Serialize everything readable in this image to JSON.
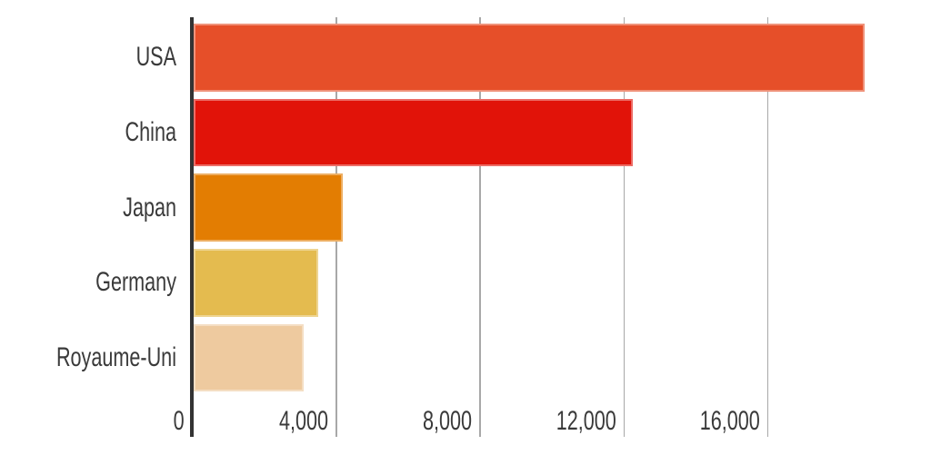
{
  "chart_data": {
    "type": "bar",
    "orientation": "horizontal",
    "title": "",
    "categories": [
      "USA",
      "China",
      "Japan",
      "Germany",
      "Royaume-Uni"
    ],
    "values": [
      18670,
      12220,
      4160,
      3470,
      3060
    ],
    "bar_colors": [
      "#e64f29",
      "#e11309",
      "#e37d02",
      "#e4bb4f",
      "#eeca9f"
    ],
    "x_axis": {
      "ticks": [
        {
          "value": 0,
          "label": "0"
        },
        {
          "value": 4000,
          "label": "4,000"
        },
        {
          "value": 8000,
          "label": "8,000"
        },
        {
          "value": 12000,
          "label": "12,000"
        },
        {
          "value": 16000,
          "label": "16,000"
        }
      ],
      "range": [
        0,
        20300
      ],
      "grid": true
    },
    "legend": {
      "visible": false
    },
    "colors": {
      "axis": "#333333",
      "grid": "#a8a8a8",
      "text": "#3a3a3a",
      "background": "#ffffff"
    }
  }
}
